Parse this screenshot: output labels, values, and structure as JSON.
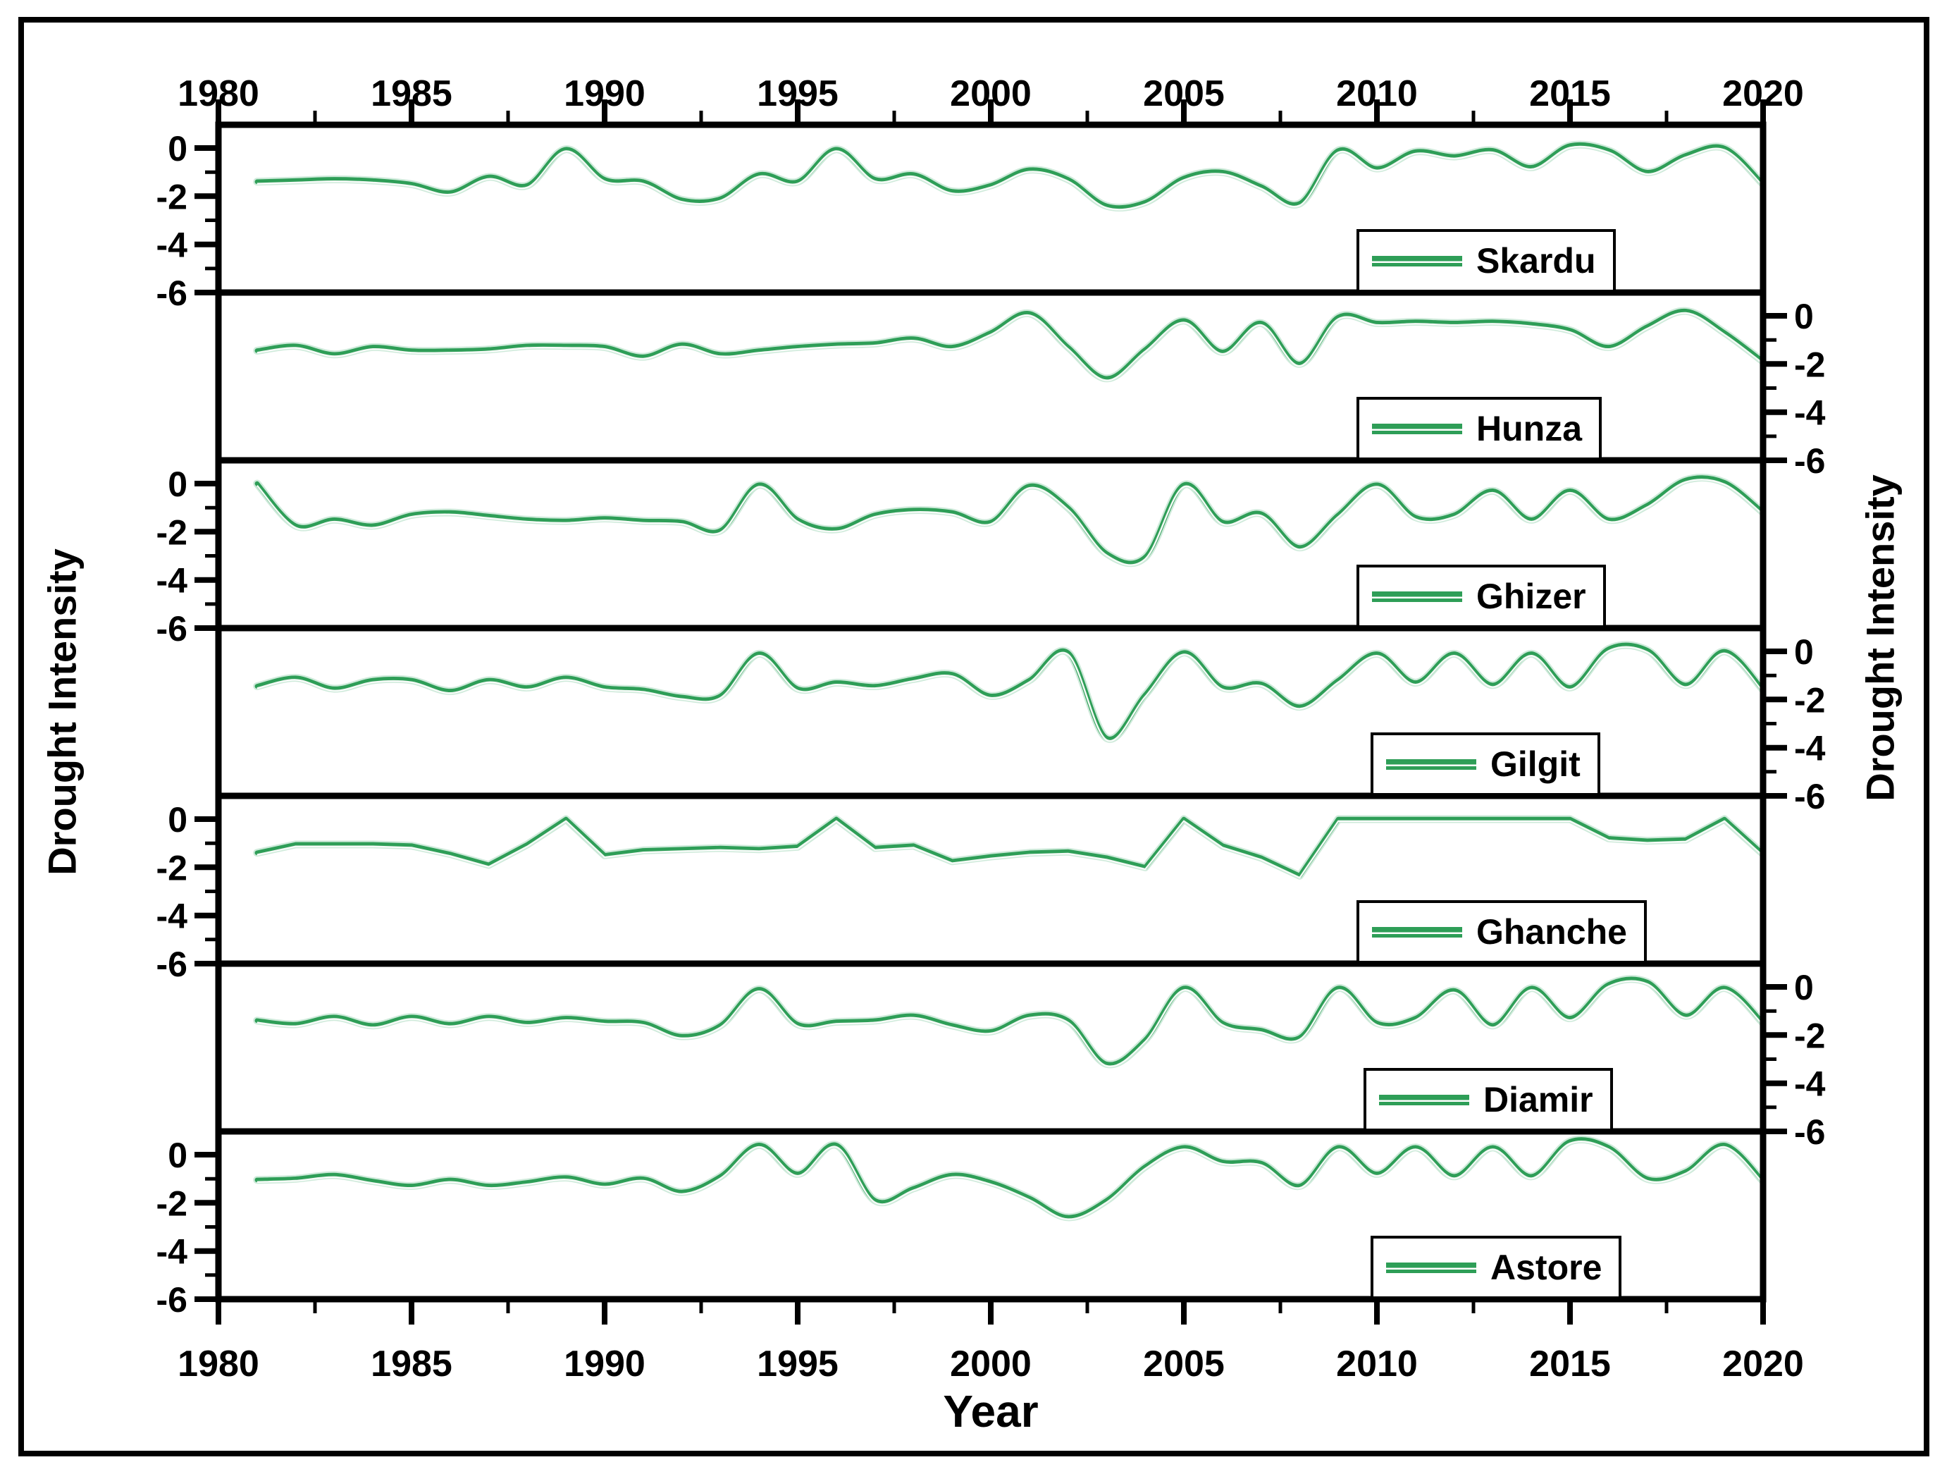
{
  "chart_data": {
    "type": "line",
    "title": "",
    "xlabel": "Year",
    "ylabel_left": "Drought Intensity",
    "ylabel_right": "Drought Intensity",
    "x_range": [
      1980,
      2020
    ],
    "ylim": [
      1.0,
      -6.0
    ],
    "x_tick_labels": [
      "1980",
      "1985",
      "1990",
      "1995",
      "2000",
      "2005",
      "2010",
      "2015",
      "2020"
    ],
    "x_major_ticks": [
      1980,
      1985,
      1990,
      1995,
      2000,
      2005,
      2010,
      2015,
      2020
    ],
    "x_minor_ticks": [
      1982.5,
      1987.5,
      1992.5,
      1997.5,
      2002.5,
      2007.5,
      2012.5,
      2017.5
    ],
    "y_major_ticks": [
      0,
      -2,
      -4,
      -6
    ],
    "y_tick_labels": [
      "0",
      "-2",
      "-4",
      "-6"
    ],
    "y_minor_ticks": [
      -1,
      -3,
      -5
    ],
    "grid": false,
    "legend_position": "inside-lower-right-of-each-panel",
    "line_color": "#2E9E57",
    "line_halo_color": "#A6D9BB",
    "line_core_color": "#FFFFFF",
    "axis_color": "#000000",
    "x": [
      1981,
      1982,
      1983,
      1984,
      1985,
      1986,
      1987,
      1988,
      1989,
      1990,
      1991,
      1992,
      1993,
      1994,
      1995,
      1996,
      1997,
      1998,
      1999,
      2000,
      2001,
      2002,
      2003,
      2004,
      2005,
      2006,
      2007,
      2008,
      2009,
      2010,
      2011,
      2012,
      2013,
      2014,
      2015,
      2016,
      2017,
      2018,
      2019,
      2020
    ],
    "series": [
      {
        "name": "Skardu",
        "y_axis_side": "left",
        "smooth": true,
        "values": [
          -1.4,
          -1.35,
          -1.3,
          -1.35,
          -1.5,
          -1.85,
          -1.2,
          -1.55,
          -0.05,
          -1.3,
          -1.4,
          -2.15,
          -2.1,
          -1.1,
          -1.4,
          -0.05,
          -1.3,
          -1.1,
          -1.8,
          -1.55,
          -0.9,
          -1.3,
          -2.4,
          -2.25,
          -1.25,
          -1.0,
          -1.6,
          -2.3,
          -0.1,
          -0.85,
          -0.15,
          -0.35,
          -0.1,
          -0.8,
          0.1,
          -0.1,
          -1.0,
          -0.3,
          0.0,
          -1.5
        ]
      },
      {
        "name": "Hunza",
        "y_axis_side": "right",
        "smooth": true,
        "values": [
          -1.45,
          -1.25,
          -1.6,
          -1.3,
          -1.45,
          -1.45,
          -1.4,
          -1.25,
          -1.25,
          -1.3,
          -1.7,
          -1.2,
          -1.6,
          -1.45,
          -1.3,
          -1.2,
          -1.15,
          -0.95,
          -1.3,
          -0.7,
          0.1,
          -1.3,
          -2.6,
          -1.4,
          -0.2,
          -1.5,
          -0.3,
          -2.0,
          -0.05,
          -0.3,
          -0.25,
          -0.3,
          -0.25,
          -0.35,
          -0.6,
          -1.3,
          -0.45,
          0.2,
          -0.7,
          -1.9
        ]
      },
      {
        "name": "Ghizer",
        "y_axis_side": "left",
        "smooth": true,
        "values": [
          0.0,
          -1.75,
          -1.5,
          -1.75,
          -1.3,
          -1.2,
          -1.35,
          -1.5,
          -1.55,
          -1.45,
          -1.55,
          -1.6,
          -1.95,
          -0.05,
          -1.5,
          -1.9,
          -1.3,
          -1.1,
          -1.2,
          -1.6,
          -0.1,
          -1.0,
          -2.9,
          -3.05,
          -0.05,
          -1.6,
          -1.25,
          -2.65,
          -1.3,
          -0.05,
          -1.4,
          -1.3,
          -0.3,
          -1.5,
          -0.3,
          -1.5,
          -0.9,
          0.15,
          0.05,
          -1.2
        ]
      },
      {
        "name": "Gilgit",
        "y_axis_side": "right",
        "smooth": true,
        "values": [
          -1.45,
          -1.1,
          -1.55,
          -1.2,
          -1.2,
          -1.65,
          -1.2,
          -1.5,
          -1.1,
          -1.5,
          -1.6,
          -1.9,
          -1.85,
          -0.1,
          -1.55,
          -1.3,
          -1.45,
          -1.15,
          -0.95,
          -1.85,
          -1.2,
          -0.05,
          -3.6,
          -1.8,
          -0.05,
          -1.5,
          -1.35,
          -2.3,
          -1.2,
          -0.1,
          -1.3,
          -0.1,
          -1.4,
          -0.1,
          -1.5,
          0.1,
          0.05,
          -1.4,
          0.0,
          -1.6
        ]
      },
      {
        "name": "Ghanche",
        "y_axis_side": "left",
        "smooth": false,
        "values": [
          -1.4,
          -1.05,
          -1.05,
          -1.05,
          -1.1,
          -1.45,
          -1.9,
          -1.05,
          0.0,
          -1.5,
          -1.3,
          -1.25,
          -1.2,
          -1.25,
          -1.15,
          0.0,
          -1.2,
          -1.1,
          -1.75,
          -1.55,
          -1.4,
          -1.35,
          -1.6,
          -2.0,
          0.0,
          -1.1,
          -1.6,
          -2.35,
          0.0,
          0.0,
          0.0,
          0.0,
          0.0,
          0.0,
          0.0,
          -0.8,
          -0.9,
          -0.85,
          0.0,
          -1.45
        ]
      },
      {
        "name": "Diamir",
        "y_axis_side": "right",
        "smooth": true,
        "values": [
          -1.4,
          -1.55,
          -1.25,
          -1.6,
          -1.25,
          -1.55,
          -1.25,
          -1.5,
          -1.3,
          -1.45,
          -1.5,
          -2.05,
          -1.6,
          -0.1,
          -1.55,
          -1.45,
          -1.4,
          -1.2,
          -1.6,
          -1.85,
          -1.2,
          -1.4,
          -3.2,
          -2.2,
          -0.05,
          -1.5,
          -1.8,
          -2.1,
          -0.05,
          -1.5,
          -1.3,
          -0.15,
          -1.6,
          -0.05,
          -1.3,
          0.1,
          0.2,
          -1.2,
          -0.05,
          -1.5
        ]
      },
      {
        "name": "Astore",
        "y_axis_side": "left",
        "smooth": true,
        "values": [
          -1.05,
          -1.0,
          -0.85,
          -1.1,
          -1.3,
          -1.05,
          -1.3,
          -1.15,
          -0.95,
          -1.25,
          -1.0,
          -1.55,
          -0.9,
          0.4,
          -0.8,
          0.4,
          -1.9,
          -1.4,
          -0.85,
          -1.15,
          -1.8,
          -2.6,
          -1.9,
          -0.5,
          0.3,
          -0.3,
          -0.35,
          -1.3,
          0.3,
          -0.8,
          0.3,
          -0.9,
          0.3,
          -0.9,
          0.55,
          0.3,
          -1.0,
          -0.7,
          0.4,
          -1.1
        ]
      }
    ]
  }
}
